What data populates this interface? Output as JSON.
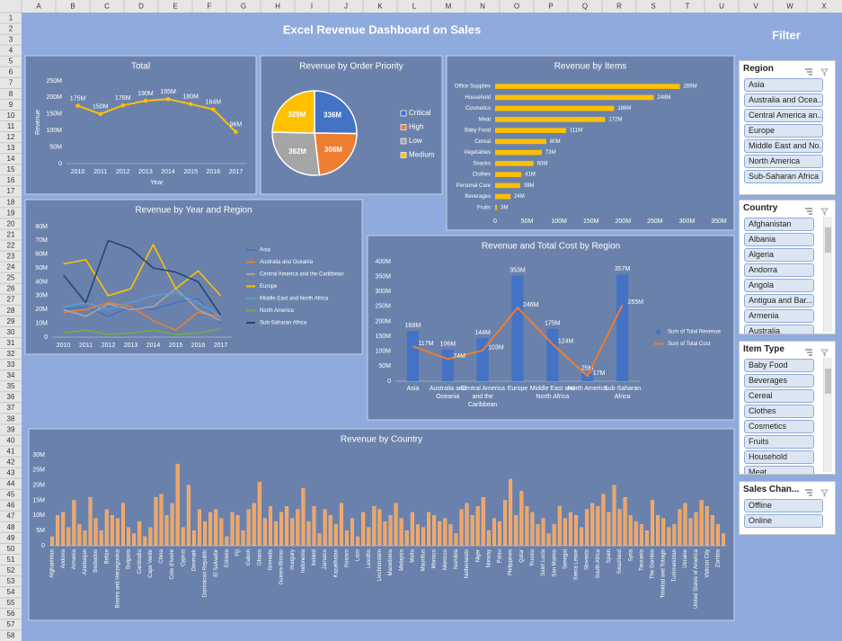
{
  "title": "Excel Revenue Dashboard on Sales",
  "filter": "Filter",
  "columns": [
    "A",
    "B",
    "C",
    "D",
    "E",
    "F",
    "G",
    "H",
    "I",
    "J",
    "K",
    "L",
    "M",
    "N",
    "O",
    "P",
    "Q",
    "R",
    "S",
    "T",
    "U",
    "V",
    "W",
    "X"
  ],
  "rows": [
    1,
    2,
    3,
    4,
    5,
    6,
    7,
    8,
    9,
    10,
    11,
    12,
    13,
    14,
    15,
    16,
    17,
    18,
    19,
    20,
    21,
    22,
    23,
    24,
    25,
    26,
    27,
    28,
    29,
    30,
    31,
    32,
    33,
    34,
    35,
    36,
    37,
    38,
    39,
    40,
    41,
    42,
    43,
    44,
    45,
    46,
    47,
    48,
    49,
    50,
    51,
    52,
    53,
    54,
    55,
    56,
    57,
    58
  ],
  "chart_data": [
    {
      "type": "line",
      "title": "Total",
      "y_label": "Revenue",
      "x_label": "Year",
      "color": "#ffc000",
      "markers": true,
      "categories": [
        "2010",
        "2011",
        "2012",
        "2013",
        "2014",
        "2015",
        "2016",
        "2017"
      ],
      "values": [
        175000000,
        150000000,
        176000000,
        190000000,
        195000000,
        180000000,
        164000000,
        96000000
      ],
      "value_labels": [
        "175M",
        "150M",
        "176M",
        "190M",
        "195M",
        "180M",
        "164M",
        "96M"
      ],
      "ylim": [
        0,
        250000000
      ],
      "yticks": [
        0,
        {
          "value": 50000000,
          "label": "50M"
        },
        {
          "value": 100000000,
          "label": "100M"
        },
        {
          "value": 150000000,
          "label": "150M"
        },
        {
          "value": 200000000,
          "label": "200M"
        },
        {
          "value": 250000000,
          "label": "250M"
        }
      ]
    },
    {
      "type": "pie",
      "title": "Revenue by Order Priority",
      "categories": [
        "Critical",
        "High",
        "Low",
        "Medium"
      ],
      "values": [
        336000000,
        306000000,
        362000000,
        329000000
      ],
      "value_labels": [
        "336M",
        "306M",
        "362M",
        "329M"
      ],
      "colors": [
        "#4472c4",
        "#ed7d31",
        "#a5a5a5",
        "#ffc000"
      ]
    },
    {
      "type": "bar",
      "orientation": "horizontal",
      "title": "Revenue by Items",
      "color": "#ffc000",
      "categories": [
        "Office Supplies",
        "Household",
        "Cosmetics",
        "Meat",
        "Baby Food",
        "Cereal",
        "Vegetables",
        "Snacks",
        "Clothes",
        "Personal Care",
        "Beverages",
        "Fruits"
      ],
      "values": [
        289000000,
        248000000,
        186000000,
        172000000,
        111000000,
        80000000,
        73000000,
        60000000,
        41000000,
        39000000,
        24000000,
        3000000
      ],
      "value_labels": [
        "289M",
        "248M",
        "186M",
        "172M",
        "111M",
        "80M",
        "73M",
        "60M",
        "41M",
        "39M",
        "24M",
        "3M"
      ],
      "xlim": [
        0,
        350000000
      ],
      "xticks": [
        0,
        {
          "value": 50000000,
          "label": "50M"
        },
        {
          "value": 100000000,
          "label": "100M"
        },
        {
          "value": 150000000,
          "label": "150M"
        },
        {
          "value": 200000000,
          "label": "200M"
        },
        {
          "value": 250000000,
          "label": "250M"
        },
        {
          "value": 300000000,
          "label": "300M"
        },
        {
          "value": 350000000,
          "label": "350M"
        }
      ]
    },
    {
      "type": "line",
      "title": "Revenue by Year and Region",
      "categories": [
        "2010",
        "2011",
        "2012",
        "2013",
        "2014",
        "2015",
        "2016",
        "2017"
      ],
      "series": [
        {
          "name": "Asia",
          "color": "#4472c4",
          "values": [
            20000000,
            22000000,
            15000000,
            22000000,
            20000000,
            25000000,
            28000000,
            10000000
          ]
        },
        {
          "name": "Australia and Oceania",
          "color": "#ed7d31",
          "values": [
            18000000,
            20000000,
            25000000,
            22000000,
            12000000,
            5000000,
            18000000,
            15000000
          ]
        },
        {
          "name": "Central America and the Caribbean",
          "color": "#a5a5a5",
          "values": [
            20000000,
            15000000,
            24000000,
            20000000,
            22000000,
            35000000,
            20000000,
            12000000
          ]
        },
        {
          "name": "Europe",
          "color": "#ffc000",
          "values": [
            53000000,
            56000000,
            30000000,
            35000000,
            67000000,
            35000000,
            48000000,
            30000000
          ]
        },
        {
          "name": "Middle East and North Africa",
          "color": "#5b9bd5",
          "values": [
            22000000,
            25000000,
            20000000,
            25000000,
            30000000,
            32000000,
            25000000,
            15000000
          ]
        },
        {
          "name": "North America",
          "color": "#70ad47",
          "values": [
            3000000,
            5000000,
            2000000,
            3000000,
            5000000,
            2000000,
            3000000,
            6000000
          ]
        },
        {
          "name": "Sub-Saharan Africa",
          "color": "#264478",
          "values": [
            45000000,
            25000000,
            70000000,
            64000000,
            50000000,
            47000000,
            40000000,
            16000000
          ]
        }
      ],
      "ylim": [
        0,
        80000000
      ],
      "yticks": [
        0,
        {
          "value": 10000000,
          "label": "10M"
        },
        {
          "value": 20000000,
          "label": "20M"
        },
        {
          "value": 30000000,
          "label": "30M"
        },
        {
          "value": 40000000,
          "label": "40M"
        },
        {
          "value": 50000000,
          "label": "50M"
        },
        {
          "value": 60000000,
          "label": "60M"
        },
        {
          "value": 70000000,
          "label": "70M"
        },
        {
          "value": 80000000,
          "label": "80M"
        }
      ]
    },
    {
      "type": "combo",
      "title": "Revenue and Total Cost by Region",
      "categories": [
        "Asia",
        "Australia and Oceania",
        "Central America and the Caribbean",
        "Europe",
        "Middle East and North Africa",
        "North America",
        "Sub-Saharan Africa"
      ],
      "series": [
        {
          "name": "Sum of Total Revenue",
          "type": "bar",
          "color": "#4472c4",
          "values": [
            168000000,
            106000000,
            144000000,
            353000000,
            175000000,
            25000000,
            357000000
          ],
          "value_labels": [
            "168M",
            "106M",
            "144M",
            "353M",
            "175M",
            "25M",
            "357M"
          ]
        },
        {
          "name": "Sum of Total Cost",
          "type": "line",
          "color": "#ed7d31",
          "values": [
            117000000,
            74000000,
            103000000,
            246000000,
            124000000,
            17000000,
            255000000
          ],
          "value_labels": [
            "117M",
            "74M",
            "103M",
            "246M",
            "124M",
            "17M",
            "255M"
          ]
        }
      ],
      "ylim": [
        0,
        400000000
      ],
      "yticks": [
        0,
        {
          "value": 50000000,
          "label": "50M"
        },
        {
          "value": 100000000,
          "label": "100M"
        },
        {
          "value": 150000000,
          "label": "150M"
        },
        {
          "value": 200000000,
          "label": "200M"
        },
        {
          "value": 250000000,
          "label": "250M"
        },
        {
          "value": 300000000,
          "label": "300M"
        },
        {
          "value": 350000000,
          "label": "350M"
        },
        {
          "value": 400000000,
          "label": "400M"
        }
      ]
    },
    {
      "type": "bar",
      "title": "Revenue by Country",
      "color": "#f4a460",
      "categories": [
        "Afghanistan",
        null,
        "Andorra",
        null,
        "Armenia",
        null,
        "Azerbaijan",
        null,
        "Barbados",
        null,
        "Belize",
        null,
        "Bosnia and Herzegovina",
        null,
        "Bulgaria",
        null,
        "Cambodia",
        null,
        "Cape Verde",
        null,
        "China",
        null,
        "Cote d'Ivoire",
        null,
        "Cyprus",
        null,
        "Denmark",
        null,
        "Dominican Republic",
        null,
        "El Salvador",
        null,
        "Estonia",
        null,
        "Fiji",
        null,
        "Gabon",
        null,
        "Ghana",
        null,
        "Grenada",
        null,
        "Guinea-Bissau",
        null,
        "Hungary",
        null,
        "Indonesia",
        null,
        "Ireland",
        null,
        "Jamaica",
        null,
        "Kazakhstan",
        null,
        "Kosovo",
        null,
        "Laos",
        null,
        "Lesotho",
        null,
        "Liechtenstein",
        null,
        "Macedonia",
        null,
        "Malaysia",
        null,
        "Malta",
        null,
        "Mauritius",
        null,
        "Monaco",
        null,
        "Morocco",
        null,
        "Namibia",
        null,
        "Netherlands",
        null,
        "Niger",
        null,
        "Norway",
        null,
        "Palau",
        null,
        "Philippines",
        null,
        "Qatar",
        null,
        "Russia",
        null,
        "Saint Lucia",
        null,
        "San Marino",
        null,
        "Senegal",
        null,
        "Sierra Leone",
        null,
        "Slovenia",
        null,
        "South Africa",
        null,
        "Spain",
        null,
        "Swaziland",
        null,
        "Syria",
        null,
        "Tanzania",
        null,
        "The Gambia",
        null,
        "Trinidad and Tobago",
        null,
        "Turkmenistan",
        null,
        "Ukraine",
        null,
        "United States of America",
        null,
        "Vatican City",
        null,
        "Zambia",
        null
      ],
      "values": [
        3000000,
        10000000,
        11000000,
        6000000,
        15000000,
        7000000,
        5000000,
        16000000,
        9000000,
        5000000,
        12000000,
        10000000,
        9000000,
        14000000,
        6000000,
        4000000,
        8000000,
        3000000,
        6000000,
        16000000,
        17000000,
        10000000,
        14000000,
        27000000,
        6000000,
        20000000,
        5000000,
        12000000,
        8000000,
        11000000,
        12000000,
        9000000,
        3000000,
        11000000,
        10000000,
        5000000,
        12000000,
        14000000,
        21000000,
        9000000,
        13000000,
        8000000,
        11000000,
        13000000,
        9000000,
        12000000,
        19000000,
        8000000,
        13000000,
        4000000,
        12000000,
        10000000,
        7000000,
        14000000,
        5000000,
        9000000,
        3000000,
        11000000,
        6000000,
        13000000,
        12000000,
        8000000,
        10000000,
        14000000,
        9000000,
        5000000,
        11000000,
        7000000,
        6000000,
        11000000,
        10000000,
        8000000,
        9000000,
        7000000,
        4000000,
        12000000,
        14000000,
        10000000,
        13000000,
        16000000,
        5000000,
        9000000,
        8000000,
        15000000,
        22000000,
        10000000,
        18000000,
        13000000,
        11000000,
        7000000,
        9000000,
        4000000,
        7000000,
        13000000,
        9000000,
        11000000,
        10000000,
        6000000,
        12000000,
        14000000,
        13000000,
        17000000,
        11000000,
        20000000,
        12000000,
        16000000,
        10000000,
        8000000,
        7000000,
        5000000,
        15000000,
        10000000,
        9000000,
        6000000,
        7000000,
        12000000,
        14000000,
        9000000,
        11000000,
        15000000,
        13000000,
        10000000,
        7000000,
        4000000
      ],
      "ylim": [
        0,
        30000000
      ],
      "yticks": [
        0,
        {
          "value": 5000000,
          "label": "5M"
        },
        {
          "value": 10000000,
          "label": "10M"
        },
        {
          "value": 15000000,
          "label": "15M"
        },
        {
          "value": 20000000,
          "label": "20M"
        },
        {
          "value": 25000000,
          "label": "25M"
        },
        {
          "value": 30000000,
          "label": "30M"
        }
      ]
    }
  ],
  "slicers": [
    {
      "title": "Region",
      "items": [
        "Asia",
        "Australia and Ocea...",
        "Central America an...",
        "Europe",
        "Middle East and No...",
        "North America",
        "Sub-Saharan Africa"
      ]
    },
    {
      "title": "Country",
      "items": [
        "Afghanistan",
        "Albania",
        "Algeria",
        "Andorra",
        "Angola",
        "Antigua and Bar...",
        "Armenia",
        "Australia"
      ]
    },
    {
      "title": "Item Type",
      "items": [
        "Baby Food",
        "Beverages",
        "Cereal",
        "Clothes",
        "Cosmetics",
        "Fruits",
        "Household",
        "Meat"
      ]
    },
    {
      "title": "Sales Chan...",
      "items": [
        "Offline",
        "Online"
      ]
    }
  ]
}
